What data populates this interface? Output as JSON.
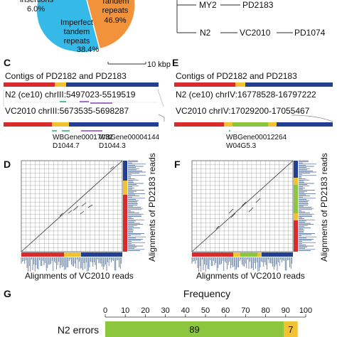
{
  "pie": {
    "labels": [
      {
        "name": "insertions",
        "text": "insertions",
        "pct": "6.0%"
      },
      {
        "name": "imperfect",
        "lines": [
          "Imperfect",
          "tandem",
          "repeats"
        ],
        "pct": "38.4%"
      },
      {
        "name": "tandem",
        "lines": [
          "Tandem",
          "repeats"
        ],
        "pct": "46.9%"
      }
    ],
    "colors": {
      "tandem": "#f2923a",
      "imperfect": "#34b9e8",
      "insertions": "#7cc35a"
    }
  },
  "tree": {
    "nodes": [
      "MY2",
      "PD2183",
      "N2",
      "VC2010",
      "PD1074"
    ]
  },
  "panel_c": {
    "letter": "C",
    "scale": "10 kbp",
    "heading": "Contigs of PD2182 and PD2183",
    "n2": "N2 (ce10) chrIII:5497023-5519519",
    "vc": "VC2010 chrIII:5673535-5698287",
    "genes": [
      {
        "id": "WBGene00017032",
        "name": "D1044.7"
      },
      {
        "id": "WBGene00004144",
        "name": "D1044.3"
      }
    ]
  },
  "panel_e": {
    "letter": "E",
    "heading": "Contigs of PD2182 and PD2183",
    "n2": "N2 (ce10) chrIV:16778528-16797222",
    "vc": "VC2010 chrIV:17029200-17055467",
    "gene_id": "WBGene00012264",
    "gene_name": "W04G5.3"
  },
  "panel_d": {
    "letter": "D",
    "xlabel": "Alignments of VC2010 reads",
    "ylabel": "Alignments of PD2183 reads"
  },
  "panel_f": {
    "letter": "F",
    "xlabel": "Alignments of VC2010 reads",
    "ylabel": "Alignments of PD2183 reads"
  },
  "panel_g": {
    "letter": "G",
    "title": "Frequency",
    "ticks": [
      "0",
      "10",
      "20",
      "30",
      "40",
      "50",
      "60",
      "70",
      "80",
      "90",
      "100"
    ],
    "row_label": "N2 errors",
    "chart_data": {
      "type": "bar",
      "categories": [
        "N2 errors"
      ],
      "series": [
        {
          "values": [
            89
          ]
        },
        {
          "values": [
            7
          ]
        }
      ],
      "xlim": [
        0,
        100
      ]
    }
  },
  "colors": {
    "red": "#d92b2b",
    "yellow": "#f1c232",
    "blue": "#233f94",
    "green": "#8cc63f",
    "purple": "#8e44ad",
    "teal": "#2aa876"
  }
}
